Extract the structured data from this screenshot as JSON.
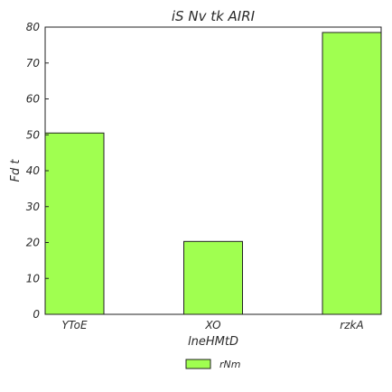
{
  "chart_data": {
    "type": "bar",
    "title": "iS Nv tk AIRI",
    "xlabel": "lneHMtD",
    "ylabel": "Fd t",
    "categories": [
      "YToE",
      "XO",
      "rzkA"
    ],
    "series": [
      {
        "name": "rNm",
        "values": [
          50.5,
          20.3,
          78.5
        ],
        "color": "#a0ff50"
      }
    ],
    "ylim": [
      0,
      80
    ],
    "yticks": [
      0,
      10,
      20,
      30,
      40,
      50,
      60,
      70,
      80
    ],
    "grid": false,
    "legend_position": "bottom-center"
  }
}
